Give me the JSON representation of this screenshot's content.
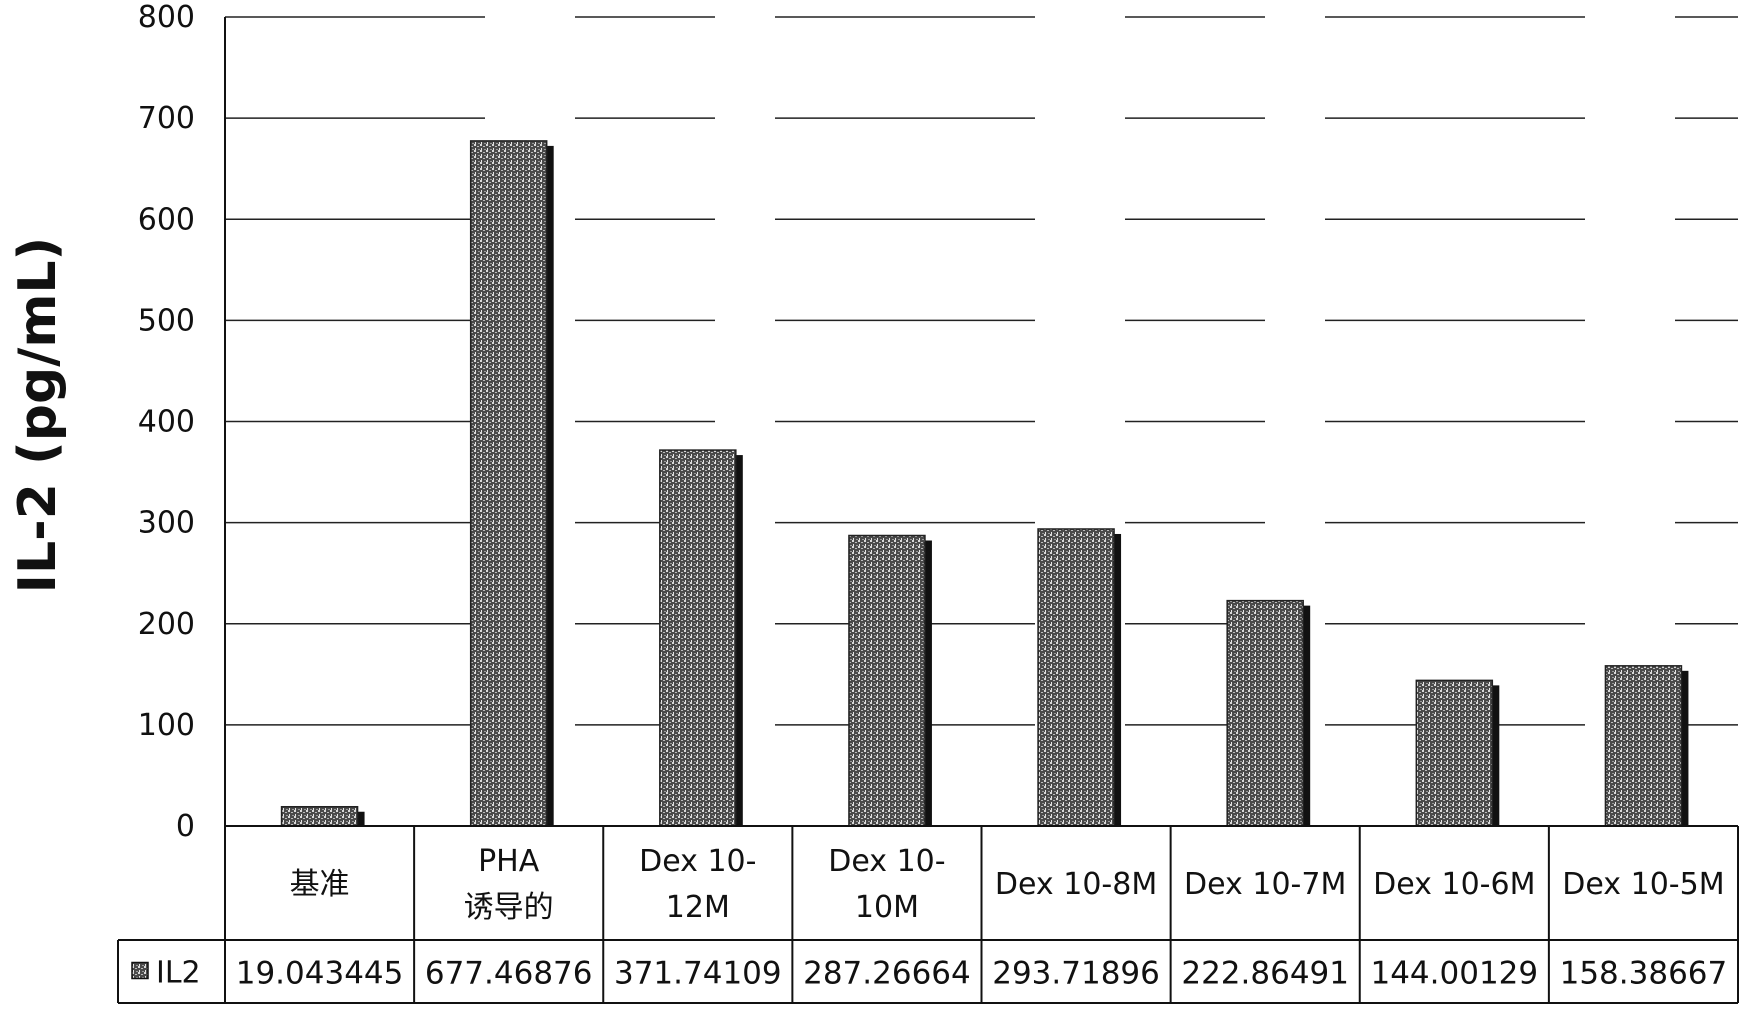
{
  "chart_data": {
    "type": "bar",
    "ylabel": "IL-2 (pg/mL)",
    "ylim": [
      0,
      800
    ],
    "yticks": [
      0,
      100,
      200,
      300,
      400,
      500,
      600,
      700,
      800
    ],
    "categories": [
      [
        "基准"
      ],
      [
        "PHA",
        "诱导的"
      ],
      [
        "Dex 10-",
        "12M"
      ],
      [
        "Dex 10-",
        "10M"
      ],
      [
        "Dex 10-8M"
      ],
      [
        "Dex 10-7M"
      ],
      [
        "Dex 10-6M"
      ],
      [
        "Dex 10-5M"
      ]
    ],
    "series": [
      {
        "name": "IL2",
        "values": [
          19.043445,
          677.46876,
          371.74109,
          287.26664,
          293.71896,
          222.86491,
          144.00129,
          158.38667
        ],
        "value_labels": [
          "19.043445",
          "677.46876",
          "371.74109",
          "287.26664",
          "293.71896",
          "222.86491",
          "144.00129",
          "158.38667"
        ]
      }
    ],
    "legend_placement": "data-table-row-left",
    "grid": true,
    "colors": {
      "bar": "#3a3a3a",
      "bar_shadow": "#111111",
      "grid": "#222222"
    }
  }
}
